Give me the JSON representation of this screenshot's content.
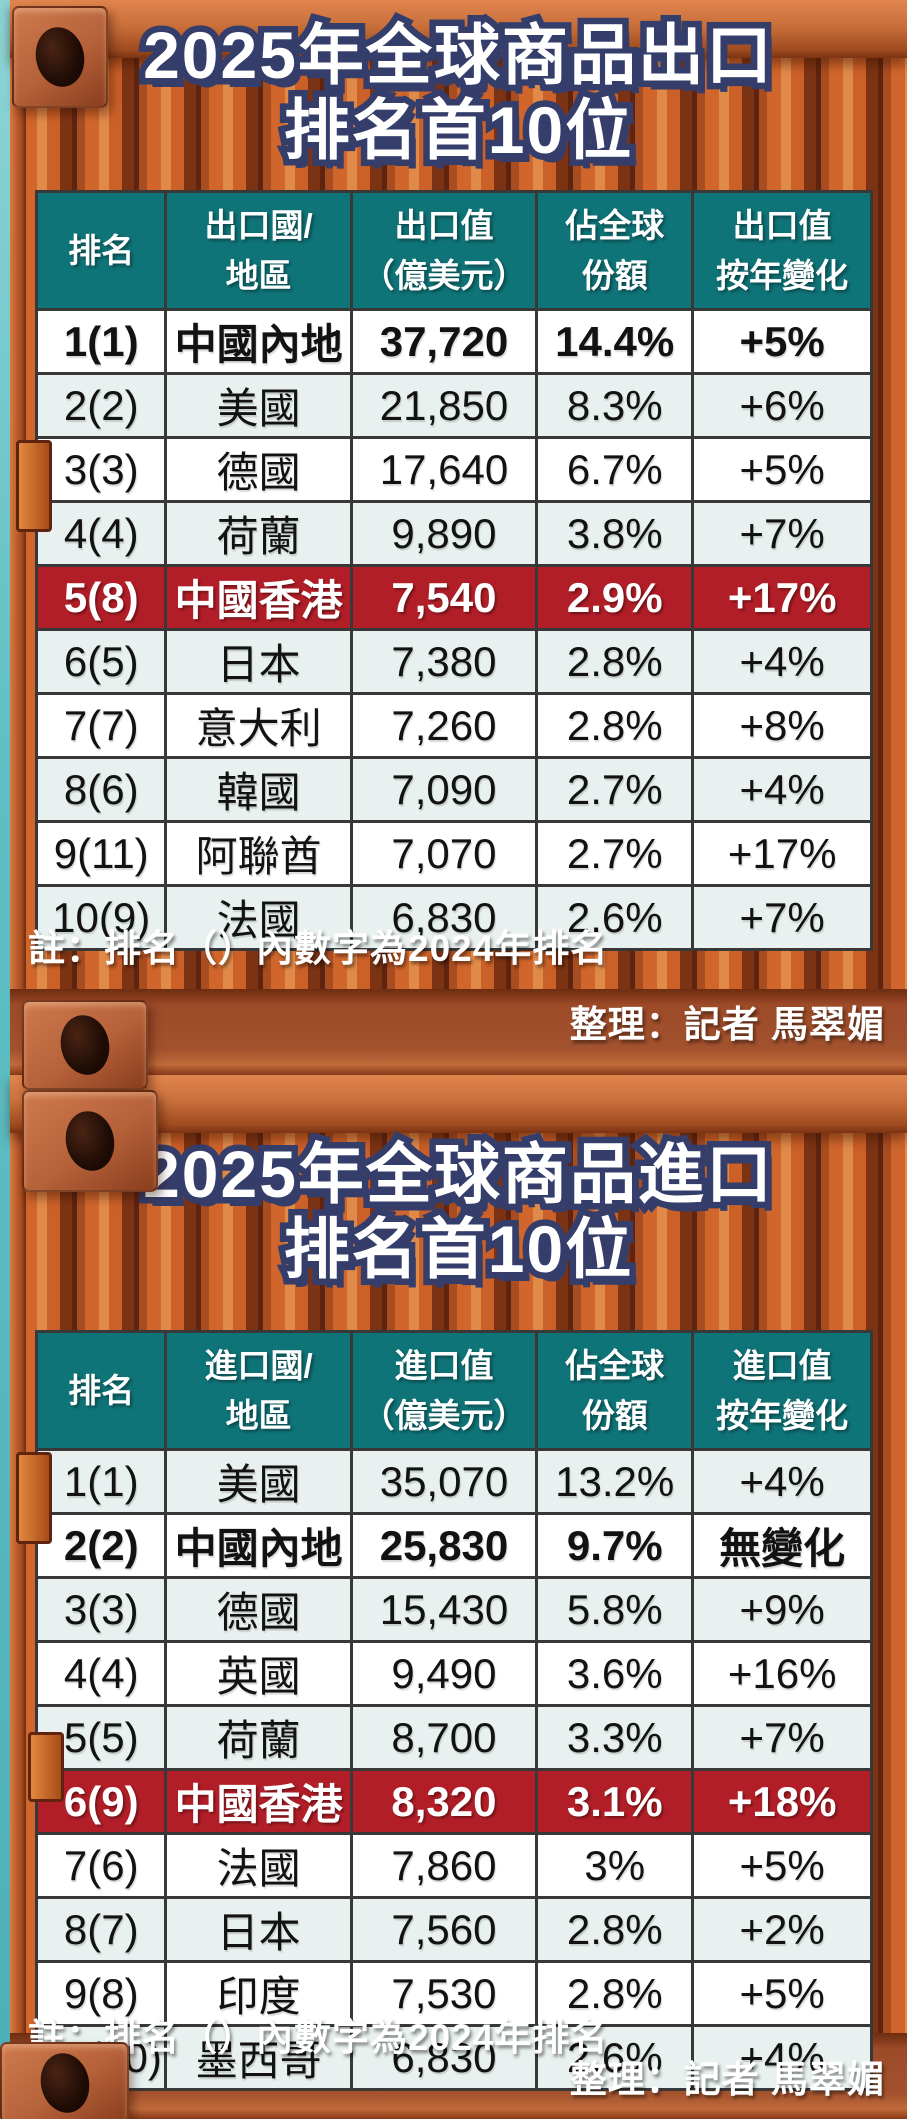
{
  "colors": {
    "teal": "#0f7478",
    "row_light": "#e8f1ef",
    "row_white": "#ffffff",
    "highlight_red": "#b21e28",
    "navy": "#353e6b",
    "container_orange": "#c8622e",
    "sea": "#5fc0c4",
    "border_dark": "#383838"
  },
  "chart_data": [
    {
      "type": "table",
      "title_line1": "2025年全球商品出口",
      "title_line2": "排名首10位",
      "columns": [
        {
          "lines": [
            "排名"
          ]
        },
        {
          "lines": [
            "出口國/",
            "地區"
          ]
        },
        {
          "lines": [
            "出口值",
            "（億美元）"
          ]
        },
        {
          "lines": [
            "佔全球",
            "份額"
          ]
        },
        {
          "lines": [
            "出口值",
            "按年變化"
          ]
        }
      ],
      "rows": [
        {
          "rank": "1(1)",
          "region": "中國內地",
          "value": "37,720",
          "share": "14.4%",
          "change": "+5%",
          "variant": "white",
          "bold": true
        },
        {
          "rank": "2(2)",
          "region": "美國",
          "value": "21,850",
          "share": "8.3%",
          "change": "+6%",
          "variant": "light",
          "bold": false
        },
        {
          "rank": "3(3)",
          "region": "德國",
          "value": "17,640",
          "share": "6.7%",
          "change": "+5%",
          "variant": "white",
          "bold": false
        },
        {
          "rank": "4(4)",
          "region": "荷蘭",
          "value": "9,890",
          "share": "3.8%",
          "change": "+7%",
          "variant": "light",
          "bold": false
        },
        {
          "rank": "5(8)",
          "region": "中國香港",
          "value": "7,540",
          "share": "2.9%",
          "change": "+17%",
          "variant": "red",
          "bold": true
        },
        {
          "rank": "6(5)",
          "region": "日本",
          "value": "7,380",
          "share": "2.8%",
          "change": "+4%",
          "variant": "light",
          "bold": false
        },
        {
          "rank": "7(7)",
          "region": "意大利",
          "value": "7,260",
          "share": "2.8%",
          "change": "+8%",
          "variant": "white",
          "bold": false
        },
        {
          "rank": "8(6)",
          "region": "韓國",
          "value": "7,090",
          "share": "2.7%",
          "change": "+4%",
          "variant": "light",
          "bold": false
        },
        {
          "rank": "9(11)",
          "region": "阿聯酋",
          "value": "7,070",
          "share": "2.7%",
          "change": "+17%",
          "variant": "white",
          "bold": false
        },
        {
          "rank": "10(9)",
          "region": "法國",
          "value": "6,830",
          "share": "2.6%",
          "change": "+7%",
          "variant": "light",
          "bold": false
        }
      ],
      "note": "註：排名（）內數字為2024年排名",
      "credit": "整理：記者 馬翠媚"
    },
    {
      "type": "table",
      "title_line1": "2025年全球商品進口",
      "title_line2": "排名首10位",
      "columns": [
        {
          "lines": [
            "排名"
          ]
        },
        {
          "lines": [
            "進口國/",
            "地區"
          ]
        },
        {
          "lines": [
            "進口值",
            "（億美元）"
          ]
        },
        {
          "lines": [
            "佔全球",
            "份額"
          ]
        },
        {
          "lines": [
            "進口值",
            "按年變化"
          ]
        }
      ],
      "rows": [
        {
          "rank": "1(1)",
          "region": "美國",
          "value": "35,070",
          "share": "13.2%",
          "change": "+4%",
          "variant": "light",
          "bold": false
        },
        {
          "rank": "2(2)",
          "region": "中國內地",
          "value": "25,830",
          "share": "9.7%",
          "change": "無變化",
          "variant": "white",
          "bold": true
        },
        {
          "rank": "3(3)",
          "region": "德國",
          "value": "15,430",
          "share": "5.8%",
          "change": "+9%",
          "variant": "light",
          "bold": false
        },
        {
          "rank": "4(4)",
          "region": "英國",
          "value": "9,490",
          "share": "3.6%",
          "change": "+16%",
          "variant": "white",
          "bold": false
        },
        {
          "rank": "5(5)",
          "region": "荷蘭",
          "value": "8,700",
          "share": "3.3%",
          "change": "+7%",
          "variant": "light",
          "bold": false
        },
        {
          "rank": "6(9)",
          "region": "中國香港",
          "value": "8,320",
          "share": "3.1%",
          "change": "+18%",
          "variant": "red",
          "bold": true
        },
        {
          "rank": "7(6)",
          "region": "法國",
          "value": "7,860",
          "share": "3%",
          "change": "+5%",
          "variant": "white",
          "bold": false
        },
        {
          "rank": "8(7)",
          "region": "日本",
          "value": "7,560",
          "share": "2.8%",
          "change": "+2%",
          "variant": "light",
          "bold": false
        },
        {
          "rank": "9(8)",
          "region": "印度",
          "value": "7,530",
          "share": "2.8%",
          "change": "+5%",
          "variant": "white",
          "bold": false
        },
        {
          "rank": "10(10)",
          "region": "墨西哥",
          "value": "6,830",
          "share": "2.6%",
          "change": "+4%",
          "variant": "light",
          "bold": false
        }
      ],
      "note": "註：排名（）內數字為2024年排名",
      "credit": "整理：記者 馬翠媚"
    }
  ]
}
